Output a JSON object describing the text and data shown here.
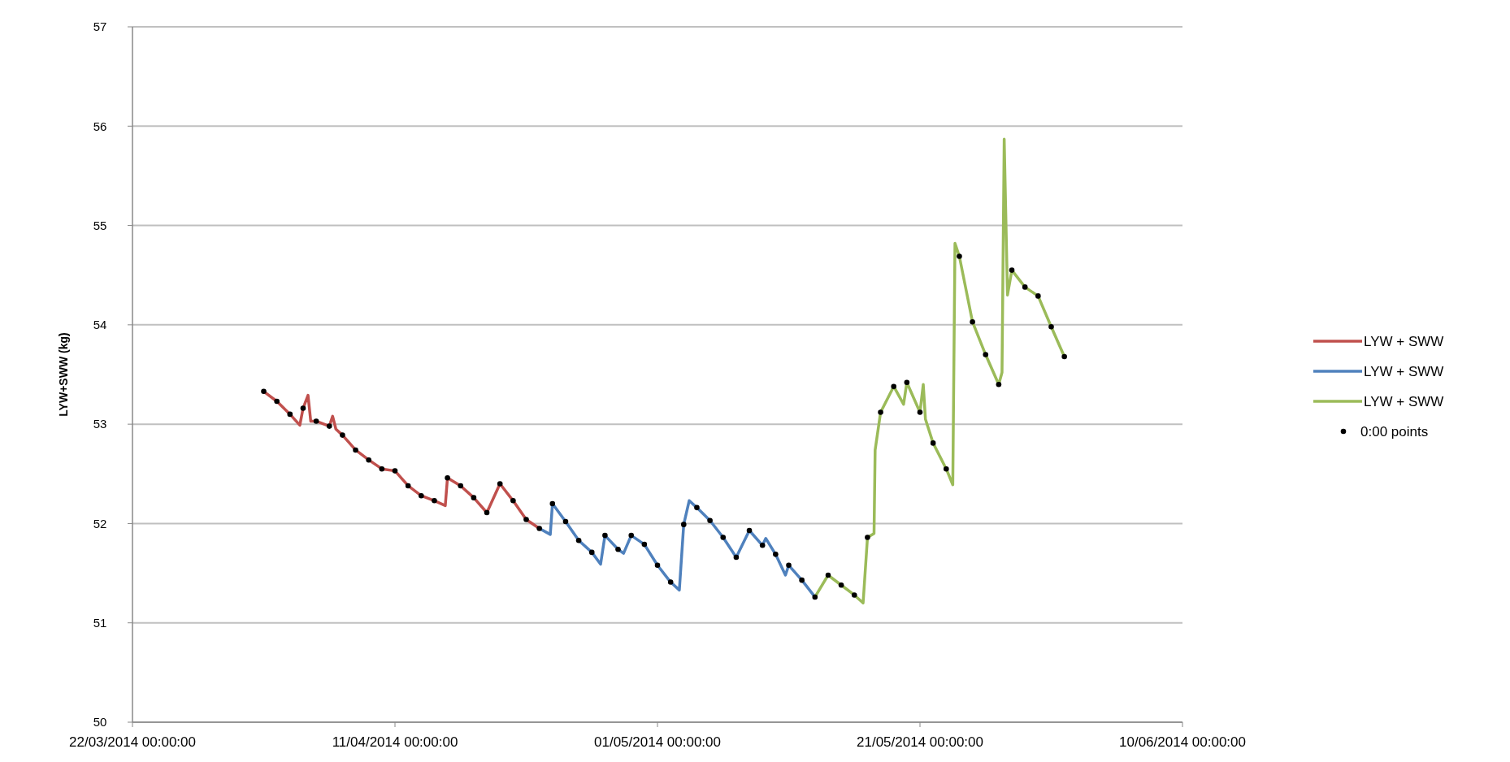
{
  "chart_data": {
    "type": "line",
    "ylabel": "LYW+SWW (kg)",
    "xlim": [
      "2014-03-22",
      "2014-06-10"
    ],
    "xticks": [
      {
        "value": "2014-03-22",
        "label": "22/03/2014 00:00:00"
      },
      {
        "value": "2014-04-11",
        "label": "11/04/2014 00:00:00"
      },
      {
        "value": "2014-05-01",
        "label": "01/05/2014 00:00:00"
      },
      {
        "value": "2014-05-21",
        "label": "21/05/2014 00:00:00"
      },
      {
        "value": "2014-06-10",
        "label": "10/06/2014 00:00:00"
      }
    ],
    "ylim": [
      50,
      57
    ],
    "yticks": [
      50,
      51,
      52,
      53,
      54,
      55,
      56,
      57
    ],
    "grid": "y",
    "legend": "right",
    "line_style": "solid",
    "series": [
      {
        "name": "LYW + SWW",
        "color": "#c0504d",
        "x": [
          "2014-04-01",
          "2014-04-02",
          "2014-04-03",
          "2014-04-03T18:00",
          "2014-04-04",
          "2014-04-04T09:00",
          "2014-04-04T14:00",
          "2014-04-05",
          "2014-04-06",
          "2014-04-06T06:00",
          "2014-04-06T12:00",
          "2014-04-07",
          "2014-04-08",
          "2014-04-09",
          "2014-04-10",
          "2014-04-11",
          "2014-04-12",
          "2014-04-13",
          "2014-04-14",
          "2014-04-14T20:00",
          "2014-04-15",
          "2014-04-16",
          "2014-04-17",
          "2014-04-18",
          "2014-04-19",
          "2014-04-20",
          "2014-04-21",
          "2014-04-22"
        ],
        "values": [
          53.33,
          53.23,
          53.1,
          52.99,
          53.16,
          53.29,
          53.03,
          53.03,
          52.98,
          53.08,
          52.95,
          52.89,
          52.74,
          52.64,
          52.55,
          52.53,
          52.38,
          52.28,
          52.23,
          52.18,
          52.46,
          52.38,
          52.26,
          52.11,
          52.4,
          52.23,
          52.04,
          51.95
        ]
      },
      {
        "name": "LYW + SWW",
        "color": "#4f81bd",
        "x": [
          "2014-04-22",
          "2014-04-22T20:00",
          "2014-04-23",
          "2014-04-24",
          "2014-04-25",
          "2014-04-26",
          "2014-04-26T16:00",
          "2014-04-27",
          "2014-04-28",
          "2014-04-28T10:00",
          "2014-04-29",
          "2014-04-30",
          "2014-05-01",
          "2014-05-02",
          "2014-05-02T16:00",
          "2014-05-03",
          "2014-05-03T10:00",
          "2014-05-04",
          "2014-05-05",
          "2014-05-06",
          "2014-05-07",
          "2014-05-08",
          "2014-05-09",
          "2014-05-09T06:00",
          "2014-05-10",
          "2014-05-10T18:00",
          "2014-05-11",
          "2014-05-12",
          "2014-05-13"
        ],
        "values": [
          51.95,
          51.89,
          52.2,
          52.02,
          51.83,
          51.71,
          51.59,
          51.88,
          51.74,
          51.7,
          51.88,
          51.79,
          51.58,
          51.41,
          51.33,
          51.99,
          52.23,
          52.16,
          52.03,
          51.86,
          51.66,
          51.93,
          51.78,
          51.85,
          51.69,
          51.48,
          51.58,
          51.43,
          51.26
        ]
      },
      {
        "name": "LYW + SWW",
        "color": "#9bbb59",
        "x": [
          "2014-05-13",
          "2014-05-14",
          "2014-05-15",
          "2014-05-16",
          "2014-05-16T16:00",
          "2014-05-17",
          "2014-05-17T12:00",
          "2014-05-17T14:00",
          "2014-05-18",
          "2014-05-19",
          "2014-05-19T18:00",
          "2014-05-20",
          "2014-05-21",
          "2014-05-21T06:00",
          "2014-05-21T10:00",
          "2014-05-22",
          "2014-05-23",
          "2014-05-23T12:00",
          "2014-05-23T16:00",
          "2014-05-24",
          "2014-05-25",
          "2014-05-26",
          "2014-05-27",
          "2014-05-27T06:00",
          "2014-05-27T10:00",
          "2014-05-27T16:00",
          "2014-05-28",
          "2014-05-29",
          "2014-05-30",
          "2014-05-31",
          "2014-06-01"
        ],
        "values": [
          51.26,
          51.48,
          51.38,
          51.28,
          51.2,
          51.86,
          51.9,
          52.74,
          53.12,
          53.38,
          53.2,
          53.42,
          53.12,
          53.4,
          53.05,
          52.81,
          52.55,
          52.39,
          54.82,
          54.69,
          54.03,
          53.7,
          53.4,
          53.52,
          55.87,
          54.3,
          54.55,
          54.38,
          54.29,
          53.98,
          53.68
        ]
      },
      {
        "name": "0:00 points",
        "type": "scatter",
        "marker": "circle",
        "color": "#000000",
        "x": [
          "2014-04-01",
          "2014-04-02",
          "2014-04-03",
          "2014-04-04",
          "2014-04-05",
          "2014-04-06",
          "2014-04-07",
          "2014-04-08",
          "2014-04-09",
          "2014-04-10",
          "2014-04-11",
          "2014-04-12",
          "2014-04-13",
          "2014-04-14",
          "2014-04-15",
          "2014-04-16",
          "2014-04-17",
          "2014-04-18",
          "2014-04-19",
          "2014-04-20",
          "2014-04-21",
          "2014-04-22",
          "2014-04-23",
          "2014-04-24",
          "2014-04-25",
          "2014-04-26",
          "2014-04-27",
          "2014-04-28",
          "2014-04-29",
          "2014-04-30",
          "2014-05-01",
          "2014-05-02",
          "2014-05-03",
          "2014-05-04",
          "2014-05-05",
          "2014-05-06",
          "2014-05-07",
          "2014-05-08",
          "2014-05-09",
          "2014-05-10",
          "2014-05-11",
          "2014-05-12",
          "2014-05-13",
          "2014-05-14",
          "2014-05-15",
          "2014-05-16",
          "2014-05-17",
          "2014-05-18",
          "2014-05-19",
          "2014-05-20",
          "2014-05-21",
          "2014-05-22",
          "2014-05-23",
          "2014-05-24",
          "2014-05-25",
          "2014-05-26",
          "2014-05-27",
          "2014-05-28",
          "2014-05-29",
          "2014-05-30",
          "2014-05-31",
          "2014-06-01"
        ],
        "values": [
          53.33,
          53.23,
          53.1,
          53.16,
          53.03,
          52.98,
          52.89,
          52.74,
          52.64,
          52.55,
          52.53,
          52.38,
          52.28,
          52.23,
          52.46,
          52.38,
          52.26,
          52.11,
          52.4,
          52.23,
          52.04,
          51.95,
          52.2,
          52.02,
          51.83,
          51.71,
          51.88,
          51.74,
          51.88,
          51.79,
          51.58,
          51.41,
          51.99,
          52.16,
          52.03,
          51.86,
          51.66,
          51.93,
          51.78,
          51.69,
          51.58,
          51.43,
          51.26,
          51.48,
          51.38,
          51.28,
          51.86,
          53.12,
          53.38,
          53.42,
          53.12,
          52.81,
          52.55,
          54.69,
          54.03,
          53.7,
          53.4,
          54.55,
          54.38,
          54.29,
          53.98,
          53.68
        ]
      }
    ]
  }
}
